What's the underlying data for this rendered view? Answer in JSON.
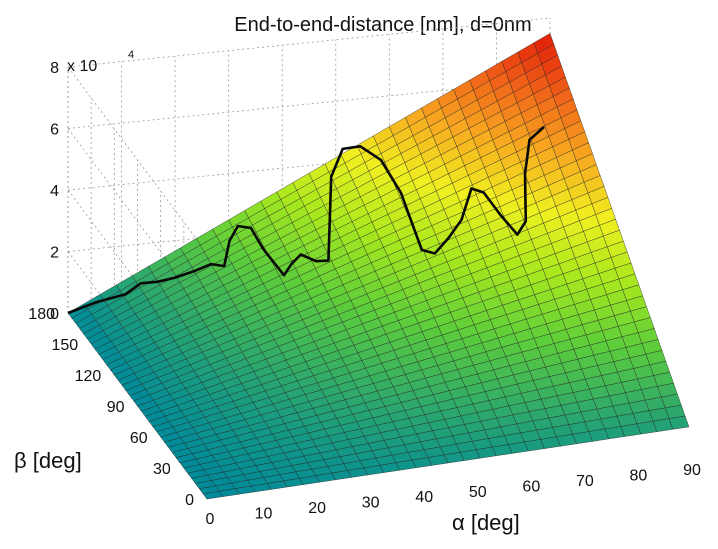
{
  "chart_data": {
    "type": "surface",
    "title": "End-to-end-distance [nm], d=0nm",
    "xlabel": "α [deg]",
    "ylabel": "β [deg]",
    "zlabel": "",
    "z_multiplier": "x 10",
    "z_multiplier_exponent": "4",
    "xlim": [
      0,
      90
    ],
    "ylim": [
      0,
      180
    ],
    "zlim": [
      0,
      80000
    ],
    "x_ticks": [
      "0",
      "10",
      "20",
      "30",
      "40",
      "50",
      "60",
      "70",
      "80",
      "90"
    ],
    "y_ticks": [
      "0",
      "30",
      "60",
      "90",
      "120",
      "150",
      "180"
    ],
    "z_ticks": [
      "0",
      "2",
      "4",
      "6",
      "8"
    ],
    "grid": true,
    "colormap": [
      "#008a9a",
      "#2faa6a",
      "#5ece3a",
      "#a8e81e",
      "#f0f020",
      "#f7a820",
      "#f06018",
      "#e01808"
    ],
    "surface_max": 75000,
    "surface_corners": [
      {
        "alpha": 0,
        "beta": 0,
        "z": 0
      },
      {
        "alpha": 90,
        "beta": 0,
        "z": 7500
      },
      {
        "alpha": 0,
        "beta": 180,
        "z": 0
      },
      {
        "alpha": 90,
        "beta": 180,
        "z": 75000
      }
    ],
    "path_line": {
      "name": "",
      "points": [
        {
          "alpha": 0,
          "beta": 180,
          "z": 0
        },
        {
          "alpha": 5,
          "beta": 178,
          "z": 3300
        },
        {
          "alpha": 10,
          "beta": 175,
          "z": 6000
        },
        {
          "alpha": 13,
          "beta": 176,
          "z": 8700
        },
        {
          "alpha": 16,
          "beta": 175,
          "z": 9000
        },
        {
          "alpha": 19,
          "beta": 173,
          "z": 10500
        },
        {
          "alpha": 22,
          "beta": 170,
          "z": 13000
        },
        {
          "alpha": 25,
          "beta": 168,
          "z": 15500
        },
        {
          "alpha": 27,
          "beta": 165,
          "z": 15500
        },
        {
          "alpha": 29,
          "beta": 172,
          "z": 21000
        },
        {
          "alpha": 31,
          "beta": 175,
          "z": 24500
        },
        {
          "alpha": 33,
          "beta": 172,
          "z": 24500
        },
        {
          "alpha": 34,
          "beta": 163,
          "z": 20500
        },
        {
          "alpha": 36,
          "beta": 150,
          "z": 16000
        },
        {
          "alpha": 38,
          "beta": 154,
          "z": 18000
        },
        {
          "alpha": 40,
          "beta": 156,
          "z": 20000
        },
        {
          "alpha": 42,
          "beta": 150,
          "z": 19500
        },
        {
          "alpha": 44,
          "beta": 148,
          "z": 20000
        },
        {
          "alpha": 46,
          "beta": 160,
          "z": 29000
        },
        {
          "alpha": 48,
          "beta": 172,
          "z": 38500
        },
        {
          "alpha": 51,
          "beta": 178,
          "z": 45000
        },
        {
          "alpha": 54,
          "beta": 176,
          "z": 46000
        },
        {
          "alpha": 57,
          "beta": 170,
          "z": 43000
        },
        {
          "alpha": 59,
          "beta": 158,
          "z": 36000
        },
        {
          "alpha": 60,
          "beta": 138,
          "z": 24000
        },
        {
          "alpha": 62,
          "beta": 135,
          "z": 23500
        },
        {
          "alpha": 65,
          "beta": 138,
          "z": 27000
        },
        {
          "alpha": 68,
          "beta": 142,
          "z": 31000
        },
        {
          "alpha": 71,
          "beta": 150,
          "z": 38000
        },
        {
          "alpha": 73,
          "beta": 148,
          "z": 37000
        },
        {
          "alpha": 75,
          "beta": 140,
          "z": 32000
        },
        {
          "alpha": 77,
          "beta": 132,
          "z": 28000
        },
        {
          "alpha": 79,
          "beta": 135,
          "z": 31000
        },
        {
          "alpha": 81,
          "beta": 150,
          "z": 41000
        },
        {
          "alpha": 83,
          "beta": 158,
          "z": 49000
        },
        {
          "alpha": 86,
          "beta": 160,
          "z": 52000
        }
      ]
    }
  }
}
